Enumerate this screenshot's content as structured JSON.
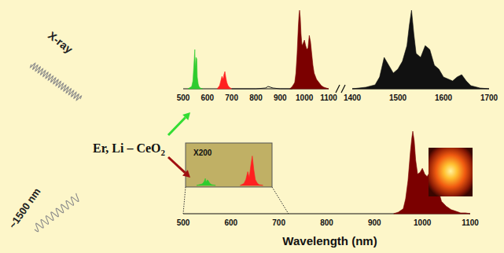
{
  "chart_data": [
    {
      "type": "area",
      "xlim": [
        500,
        1100
      ],
      "xticks": [
        500,
        600,
        700,
        800,
        900,
        1000,
        1100
      ],
      "ylim": [
        0,
        100
      ],
      "tick_labels": "x",
      "series": [
        {
          "color": "#2ecc2e",
          "x": [
            520,
            535,
            540,
            545,
            548,
            550,
            553,
            556,
            558,
            562,
            565,
            570,
            580
          ],
          "values": [
            0,
            3,
            10,
            35,
            50,
            25,
            40,
            38,
            15,
            6,
            3,
            1,
            0
          ]
        },
        {
          "color": "#ff2020",
          "x": [
            640,
            650,
            655,
            660,
            665,
            668,
            672,
            676,
            680,
            685,
            690,
            700
          ],
          "values": [
            0,
            4,
            10,
            16,
            12,
            18,
            22,
            14,
            8,
            4,
            2,
            0
          ]
        },
        {
          "type": "line",
          "color": "#222222",
          "x": [
            700,
            800,
            840,
            850,
            860,
            870,
            900,
            950
          ],
          "values": [
            0,
            0,
            1,
            3,
            2,
            1,
            0,
            0
          ]
        },
        {
          "color": "#7b0000",
          "x": [
            940,
            950,
            960,
            965,
            970,
            975,
            978,
            980,
            983,
            986,
            990,
            995,
            1000,
            1005,
            1010,
            1015,
            1020,
            1025,
            1030,
            1035,
            1040,
            1050,
            1060,
            1070,
            1080,
            1090,
            1100
          ],
          "values": [
            0,
            3,
            8,
            20,
            45,
            80,
            95,
            100,
            90,
            70,
            55,
            58,
            62,
            55,
            50,
            52,
            68,
            60,
            45,
            30,
            20,
            12,
            8,
            4,
            2,
            1,
            0
          ]
        }
      ]
    },
    {
      "type": "area",
      "xlim": [
        1400,
        1700
      ],
      "xticks": [
        1400,
        1500,
        1600,
        1700
      ],
      "ylim": [
        0,
        100
      ],
      "tick_labels": "x",
      "series": [
        {
          "color": "#111111",
          "x": [
            1400,
            1430,
            1450,
            1460,
            1470,
            1480,
            1490,
            1500,
            1510,
            1520,
            1525,
            1530,
            1535,
            1540,
            1550,
            1560,
            1570,
            1580,
            1590,
            1600,
            1620,
            1630,
            1640,
            1650,
            1660,
            1680,
            1700
          ],
          "values": [
            0,
            2,
            5,
            15,
            40,
            30,
            20,
            25,
            35,
            55,
            80,
            100,
            70,
            45,
            40,
            55,
            50,
            30,
            25,
            15,
            10,
            15,
            18,
            10,
            4,
            1,
            0
          ]
        }
      ]
    },
    {
      "type": "area",
      "xlim": [
        500,
        1100
      ],
      "xticks": [
        500,
        600,
        700,
        800,
        900,
        1000,
        1100
      ],
      "ylim": [
        0,
        100
      ],
      "tick_labels": "x",
      "xlabel": "Wavelength (nm)",
      "series": [
        {
          "color": "#7b0000",
          "x": [
            940,
            950,
            960,
            965,
            970,
            975,
            978,
            980,
            983,
            986,
            990,
            995,
            1000,
            1005,
            1010,
            1015,
            1020,
            1025,
            1030,
            1035,
            1040,
            1050,
            1060,
            1070,
            1080,
            1090,
            1100
          ],
          "values": [
            0,
            2,
            6,
            18,
            40,
            75,
            92,
            100,
            88,
            65,
            48,
            50,
            55,
            48,
            45,
            50,
            62,
            55,
            40,
            25,
            15,
            9,
            5,
            3,
            1,
            1,
            0
          ]
        }
      ]
    },
    {
      "type": "area",
      "title": "X200",
      "xlim": [
        500,
        720
      ],
      "ylim": [
        0,
        100
      ],
      "tick_labels": false,
      "series": [
        {
          "color": "#2ecc2e",
          "x": [
            525,
            540,
            545,
            548,
            550,
            553,
            556,
            560,
            565,
            575
          ],
          "values": [
            0,
            4,
            10,
            18,
            8,
            14,
            12,
            5,
            2,
            0
          ]
        },
        {
          "color": "#ff2020",
          "x": [
            640,
            650,
            655,
            660,
            664,
            668,
            672,
            676,
            680,
            685,
            690,
            700
          ],
          "values": [
            0,
            5,
            15,
            35,
            20,
            50,
            75,
            40,
            15,
            6,
            2,
            0
          ]
        }
      ]
    }
  ],
  "diagram": {
    "excitation": [
      "X-ray",
      "~1500 nm"
    ],
    "sample": {
      "text": "Er, Li – CeO",
      "subscript": "2"
    }
  }
}
